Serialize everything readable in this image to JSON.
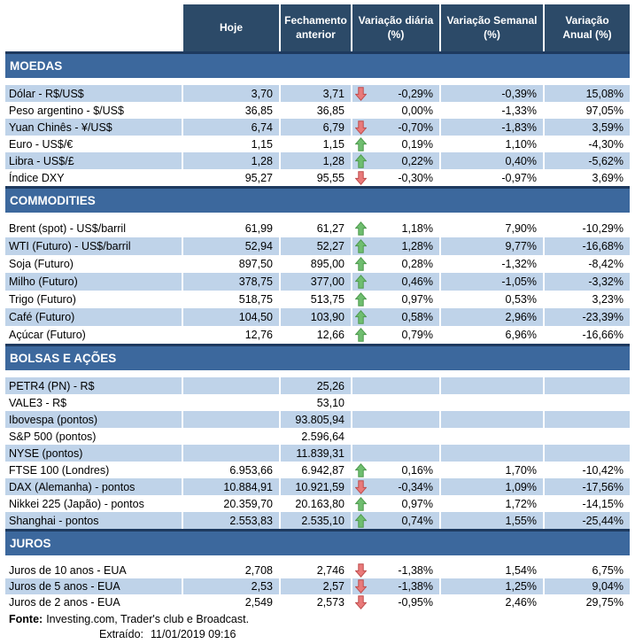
{
  "header": {
    "cols": [
      "",
      "Hoje",
      "Fechamento anterior",
      "Variação diária (%)",
      "Variação Semanal (%)",
      "Variação Anual (%)"
    ]
  },
  "sections": [
    {
      "title": "MOEDAS",
      "rows": [
        {
          "label": "Dólar - R$/US$",
          "hoje": "3,70",
          "fechamento": "3,71",
          "arrow": "down",
          "var_diaria": "-0,29%",
          "var_semanal": "-0,39%",
          "var_anual": "15,08%",
          "shaded": true
        },
        {
          "label": "Peso argentino - $/US$",
          "hoje": "36,85",
          "fechamento": "36,85",
          "arrow": null,
          "var_diaria": "0,00%",
          "var_semanal": "-1,33%",
          "var_anual": "97,05%",
          "shaded": false
        },
        {
          "label": "Yuan Chinês - ¥/US$",
          "hoje": "6,74",
          "fechamento": "6,79",
          "arrow": "down",
          "var_diaria": "-0,70%",
          "var_semanal": "-1,83%",
          "var_anual": "3,59%",
          "shaded": true
        },
        {
          "label": "Euro - US$/€",
          "hoje": "1,15",
          "fechamento": "1,15",
          "arrow": "up",
          "var_diaria": "0,19%",
          "var_semanal": "1,10%",
          "var_anual": "-4,30%",
          "shaded": false
        },
        {
          "label": "Libra - US$/£",
          "hoje": "1,28",
          "fechamento": "1,28",
          "arrow": "up",
          "var_diaria": "0,22%",
          "var_semanal": "0,40%",
          "var_anual": "-5,62%",
          "shaded": true
        },
        {
          "label": "Índice DXY",
          "hoje": "95,27",
          "fechamento": "95,55",
          "arrow": "down",
          "var_diaria": "-0,30%",
          "var_semanal": "-0,97%",
          "var_anual": "3,69%",
          "shaded": false
        }
      ]
    },
    {
      "title": "COMMODITIES",
      "rows": [
        {
          "label": "Brent (spot) - US$/barril",
          "hoje": "61,99",
          "fechamento": "61,27",
          "arrow": "up",
          "var_diaria": "1,18%",
          "var_semanal": "7,90%",
          "var_anual": "-10,29%",
          "shaded": false
        },
        {
          "label": "WTI (Futuro) - US$/barril",
          "hoje": "52,94",
          "fechamento": "52,27",
          "arrow": "up",
          "var_diaria": "1,28%",
          "var_semanal": "9,77%",
          "var_anual": "-16,68%",
          "shaded": true
        },
        {
          "label": "Soja (Futuro)",
          "hoje": "897,50",
          "fechamento": "895,00",
          "arrow": "up",
          "var_diaria": "0,28%",
          "var_semanal": "-1,32%",
          "var_anual": "-8,42%",
          "shaded": false
        },
        {
          "label": "Milho (Futuro)",
          "hoje": "378,75",
          "fechamento": "377,00",
          "arrow": "up",
          "var_diaria": "0,46%",
          "var_semanal": "-1,05%",
          "var_anual": "-3,32%",
          "shaded": true
        },
        {
          "label": "Trigo (Futuro)",
          "hoje": "518,75",
          "fechamento": "513,75",
          "arrow": "up",
          "var_diaria": "0,97%",
          "var_semanal": "0,53%",
          "var_anual": "3,23%",
          "shaded": false
        },
        {
          "label": "Café (Futuro)",
          "hoje": "104,50",
          "fechamento": "103,90",
          "arrow": "up",
          "var_diaria": "0,58%",
          "var_semanal": "2,96%",
          "var_anual": "-23,39%",
          "shaded": true
        },
        {
          "label": "Açúcar (Futuro)",
          "hoje": "12,76",
          "fechamento": "12,66",
          "arrow": "up",
          "var_diaria": "0,79%",
          "var_semanal": "6,96%",
          "var_anual": "-16,66%",
          "shaded": false
        }
      ]
    },
    {
      "title": "BOLSAS E AÇÕES",
      "rows": [
        {
          "label": "PETR4 (PN) - R$",
          "hoje": "",
          "fechamento": "25,26",
          "arrow": null,
          "var_diaria": "",
          "var_semanal": "",
          "var_anual": "",
          "shaded": true
        },
        {
          "label": "VALE3 - R$",
          "hoje": "",
          "fechamento": "53,10",
          "arrow": null,
          "var_diaria": "",
          "var_semanal": "",
          "var_anual": "",
          "shaded": false
        },
        {
          "label": "Ibovespa (pontos)",
          "hoje": "",
          "fechamento": "93.805,94",
          "arrow": null,
          "var_diaria": "",
          "var_semanal": "",
          "var_anual": "",
          "shaded": true
        },
        {
          "label": "S&P 500 (pontos)",
          "hoje": "",
          "fechamento": "2.596,64",
          "arrow": null,
          "var_diaria": "",
          "var_semanal": "",
          "var_anual": "",
          "shaded": false
        },
        {
          "label": "NYSE (pontos)",
          "hoje": "",
          "fechamento": "11.839,31",
          "arrow": null,
          "var_diaria": "",
          "var_semanal": "",
          "var_anual": "",
          "shaded": true
        },
        {
          "label": "FTSE 100 (Londres)",
          "hoje": "6.953,66",
          "fechamento": "6.942,87",
          "arrow": "up",
          "var_diaria": "0,16%",
          "var_semanal": "1,70%",
          "var_anual": "-10,42%",
          "shaded": false
        },
        {
          "label": "DAX (Alemanha) - pontos",
          "hoje": "10.884,91",
          "fechamento": "10.921,59",
          "arrow": "down",
          "var_diaria": "-0,34%",
          "var_semanal": "1,09%",
          "var_anual": "-17,56%",
          "shaded": true
        },
        {
          "label": "Nikkei 225 (Japão) - pontos",
          "hoje": "20.359,70",
          "fechamento": "20.163,80",
          "arrow": "up",
          "var_diaria": "0,97%",
          "var_semanal": "1,72%",
          "var_anual": "-14,15%",
          "shaded": false
        },
        {
          "label": "Shanghai - pontos",
          "hoje": "2.553,83",
          "fechamento": "2.535,10",
          "arrow": "up",
          "var_diaria": "0,74%",
          "var_semanal": "1,55%",
          "var_anual": "-25,44%",
          "shaded": true
        }
      ]
    },
    {
      "title": "JUROS",
      "rows": [
        {
          "label": "Juros de 10 anos - EUA",
          "hoje": "2,708",
          "fechamento": "2,746",
          "arrow": "down",
          "var_diaria": "-1,38%",
          "var_semanal": "1,54%",
          "var_anual": "6,75%",
          "shaded": false
        },
        {
          "label": "Juros de 5 anos - EUA",
          "hoje": "2,53",
          "fechamento": "2,57",
          "arrow": "down",
          "var_diaria": "-1,38%",
          "var_semanal": "1,25%",
          "var_anual": "9,04%",
          "shaded": true
        },
        {
          "label": "Juros de 2 anos - EUA",
          "hoje": "2,549",
          "fechamento": "2,573",
          "arrow": "down",
          "var_diaria": "-0,95%",
          "var_semanal": "2,46%",
          "var_anual": "29,75%",
          "shaded": false
        }
      ]
    }
  ],
  "footer": {
    "fonte_label": "Fonte:",
    "fonte_text": "Investing.com, Trader's club e Broadcast.",
    "extraido_label": "Extraído:",
    "extraido_value": "11/01/2019 09:16"
  },
  "colors": {
    "header_navy": "#2C4A68",
    "section_line_navy": "#1E3A5F",
    "section_band_blue": "#3C689D",
    "row_light_blue": "#BFD3E9",
    "arrow_up_green": "#6FBE6F",
    "arrow_up_stroke": "#4E9A4E",
    "arrow_down_red": "#E97A7A",
    "arrow_down_stroke": "#BF4C4C"
  }
}
